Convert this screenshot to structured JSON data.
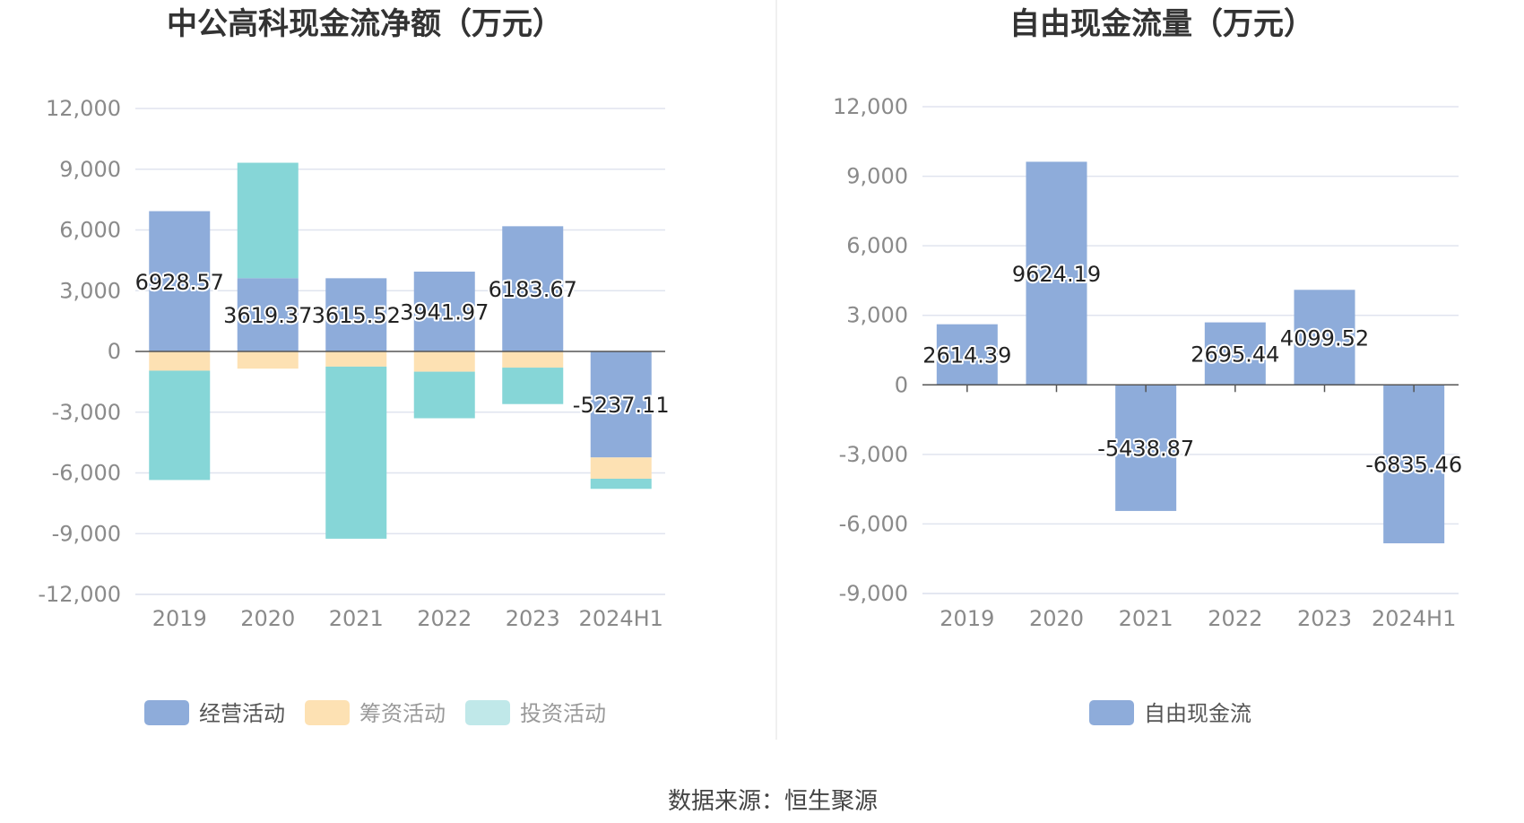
{
  "source": "数据来源：恒生聚源",
  "colors": {
    "operating": "#8eacda",
    "financing": "#fde1b3",
    "investing": "#86d6d7",
    "free_cf": "#8eacda",
    "grid": "#e0e4ef",
    "axis": "#555555"
  },
  "chart_data": [
    {
      "type": "bar",
      "stacked": true,
      "title": "中公高科现金流净额（万元）",
      "categories": [
        "2019",
        "2020",
        "2021",
        "2022",
        "2023",
        "2024H1"
      ],
      "ylim": [
        -12000,
        12000
      ],
      "yticks": [
        12000,
        9000,
        6000,
        3000,
        0,
        -3000,
        -6000,
        -9000,
        -12000
      ],
      "ytick_labels": [
        "12,000",
        "9,000",
        "6,000",
        "3,000",
        "0",
        "-3,000",
        "-6,000",
        "-9,000",
        "-12,000"
      ],
      "grid": true,
      "legend_position": "bottom",
      "series": [
        {
          "name": "经营活动",
          "color": "#8eacda",
          "values": [
            6928.57,
            3619.37,
            3615.52,
            3941.97,
            6183.67,
            -5237.11
          ],
          "labels": [
            "6928.57",
            "3619.37",
            "3615.52",
            "3941.97",
            "6183.67",
            "-5237.11"
          ]
        },
        {
          "name": "筹资活动",
          "color": "#fde1b3",
          "values": [
            -950,
            -850,
            -750,
            -1000,
            -800,
            -1050
          ]
        },
        {
          "name": "投资活动",
          "color": "#86d6d7",
          "values": [
            -5400,
            5700,
            -8500,
            -2300,
            -1800,
            -500
          ]
        }
      ]
    },
    {
      "type": "bar",
      "title": "自由现金流量（万元）",
      "categories": [
        "2019",
        "2020",
        "2021",
        "2022",
        "2023",
        "2024H1"
      ],
      "ylim": [
        -9000,
        12000
      ],
      "yticks": [
        12000,
        9000,
        6000,
        3000,
        0,
        -3000,
        -6000,
        -9000
      ],
      "ytick_labels": [
        "12,000",
        "9,000",
        "6,000",
        "3,000",
        "0",
        "-3,000",
        "-6,000",
        "-9,000"
      ],
      "grid": true,
      "legend_position": "bottom",
      "series": [
        {
          "name": "自由现金流",
          "color": "#8eacda",
          "values": [
            2614.39,
            9624.19,
            -5438.87,
            2695.44,
            4099.52,
            -6835.46
          ],
          "labels": [
            "2614.39",
            "9624.19",
            "-5438.87",
            "2695.44",
            "4099.52",
            "-6835.46"
          ]
        }
      ]
    }
  ]
}
